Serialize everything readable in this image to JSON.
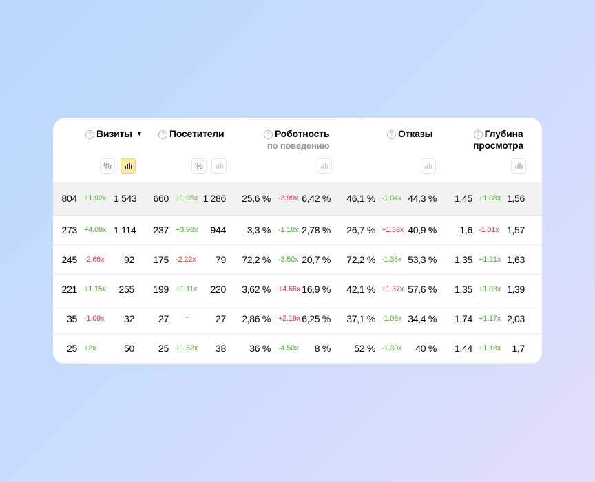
{
  "colors": {
    "positive": "#4caf30",
    "negative": "#d8343a",
    "active_toggle": "#fbe9a4"
  },
  "header": {
    "help_glyph": "?",
    "sort_glyph": "▼",
    "percent_glyph": "%",
    "columns": [
      {
        "title": "Визиты",
        "subtitle": ""
      },
      {
        "title": "Посетители",
        "subtitle": ""
      },
      {
        "title": "Роботность",
        "subtitle": "по поведению"
      },
      {
        "title": "Отказы",
        "subtitle": ""
      },
      {
        "title": "Глубина просмотра",
        "subtitle": ""
      }
    ]
  },
  "rows": [
    [
      "804",
      "+1.92x",
      "1 543",
      "660",
      "+1.95x",
      "1 286",
      "25,6 %",
      "-3.99x",
      "6,42 %",
      "46,1 %",
      "-1.04x",
      "44,3 %",
      "1,45",
      "+1.08x",
      "1,56"
    ],
    [
      "273",
      "+4.08x",
      "1 114",
      "237",
      "+3.98x",
      "944",
      "3,3 %",
      "-1.18x",
      "2,78 %",
      "26,7 %",
      "+1.53x",
      "40,9 %",
      "1,6",
      "-1.01x",
      "1,57"
    ],
    [
      "245",
      "-2.66x",
      "92",
      "175",
      "-2.22x",
      "79",
      "72,2 %",
      "-3.50x",
      "20,7 %",
      "72,2 %",
      "-1.36x",
      "53,3 %",
      "1,35",
      "+1.21x",
      "1,63"
    ],
    [
      "221",
      "+1.15x",
      "255",
      "199",
      "+1.11x",
      "220",
      "3,62 %",
      "+4.66x",
      "16,9 %",
      "42,1 %",
      "+1.37x",
      "57,6 %",
      "1,35",
      "+1.03x",
      "1,39"
    ],
    [
      "35",
      "-1.09x",
      "32",
      "27",
      "=",
      "27",
      "2,86 %",
      "+2.19x",
      "6,25 %",
      "37,1 %",
      "-1.08x",
      "34,4 %",
      "1,74",
      "+1.17x",
      "2,03"
    ],
    [
      "25",
      "+2x",
      "50",
      "25",
      "+1.52x",
      "38",
      "36 %",
      "-4.50x",
      "8 %",
      "52 %",
      "-1.30x",
      "40 %",
      "1,44",
      "+1.18x",
      "1,7"
    ]
  ],
  "delta_tone": [
    [
      "pos",
      "pos",
      "neg",
      "pos",
      "pos"
    ],
    [
      "pos",
      "pos",
      "pos",
      "neg",
      "neg"
    ],
    [
      "neg",
      "neg",
      "pos",
      "pos",
      "pos"
    ],
    [
      "pos",
      "pos",
      "neg",
      "neg",
      "pos"
    ],
    [
      "neg",
      "eq",
      "neg",
      "pos",
      "pos"
    ],
    [
      "pos",
      "pos",
      "pos",
      "pos",
      "pos"
    ]
  ]
}
